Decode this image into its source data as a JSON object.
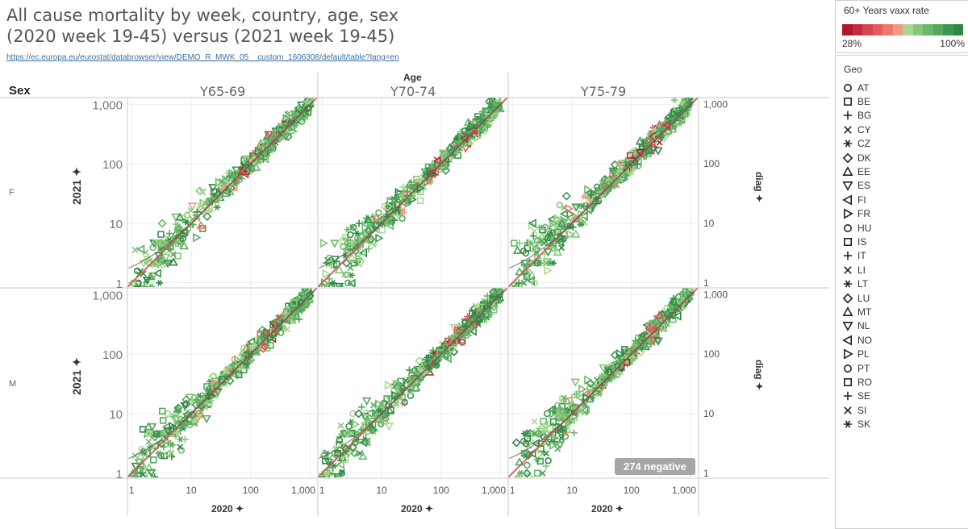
{
  "header": {
    "title_line1": "All cause mortality by week, country, age, sex",
    "title_line2": "(2020 week 19-45)  versus (2021 week 19-45)",
    "source_url": "https://ec.europa.eu/eurostat/databrowser/view/DEMO_R_MWK_05__custom_1606308/default/table?lang=en"
  },
  "chart_data": {
    "type": "scatter",
    "x_scale": "log",
    "y_scale": "log",
    "xlim": [
      0.85,
      1300
    ],
    "ylim": [
      0.85,
      1300
    ],
    "grid": true,
    "column_field": "Age",
    "row_field": "Sex",
    "columns": [
      "Y65-69",
      "Y70-74",
      "Y75-79"
    ],
    "rows": [
      "F",
      "M"
    ],
    "x_ticks": [
      "1",
      "10",
      "100",
      "1,000"
    ],
    "y_ticks": [
      "1",
      "10",
      "100",
      "1,000"
    ],
    "x_tick_values": [
      1,
      10,
      100,
      1000
    ],
    "y_tick_values": [
      1,
      10,
      100,
      1000
    ],
    "xlabel": "2020",
    "ylabel": "2021",
    "right_axis_label": "diag",
    "annotation": "274 negative",
    "diagonal": "y = x",
    "color_legend": {
      "title": "60+ Years vaxx rate",
      "min_label": "28%",
      "max_label": "100%",
      "colors": [
        "#b2182b",
        "#c62c3f",
        "#d7454f",
        "#e35d5d",
        "#ed7a6c",
        "#f39a86",
        "#a8d98f",
        "#86c77a",
        "#6cb86a",
        "#56a85c",
        "#3e9650",
        "#2d8745"
      ]
    },
    "geo_legend": {
      "title": "Geo",
      "items": [
        {
          "code": "AT",
          "shape": "circle"
        },
        {
          "code": "BE",
          "shape": "square"
        },
        {
          "code": "BG",
          "shape": "plus"
        },
        {
          "code": "CY",
          "shape": "cross"
        },
        {
          "code": "CZ",
          "shape": "asterisk"
        },
        {
          "code": "DK",
          "shape": "diamond"
        },
        {
          "code": "EE",
          "shape": "triangle-up"
        },
        {
          "code": "ES",
          "shape": "triangle-down"
        },
        {
          "code": "FI",
          "shape": "triangle-left"
        },
        {
          "code": "FR",
          "shape": "triangle-right"
        },
        {
          "code": "HU",
          "shape": "circle"
        },
        {
          "code": "IS",
          "shape": "square"
        },
        {
          "code": "IT",
          "shape": "plus"
        },
        {
          "code": "LI",
          "shape": "cross"
        },
        {
          "code": "LT",
          "shape": "asterisk"
        },
        {
          "code": "LU",
          "shape": "diamond"
        },
        {
          "code": "MT",
          "shape": "triangle-up"
        },
        {
          "code": "NL",
          "shape": "triangle-down"
        },
        {
          "code": "NO",
          "shape": "triangle-left"
        },
        {
          "code": "PL",
          "shape": "triangle-right"
        },
        {
          "code": "PT",
          "shape": "circle"
        },
        {
          "code": "RO",
          "shape": "square"
        },
        {
          "code": "SE",
          "shape": "plus"
        },
        {
          "code": "SI",
          "shape": "cross"
        },
        {
          "code": "SK",
          "shape": "asterisk"
        }
      ]
    }
  }
}
